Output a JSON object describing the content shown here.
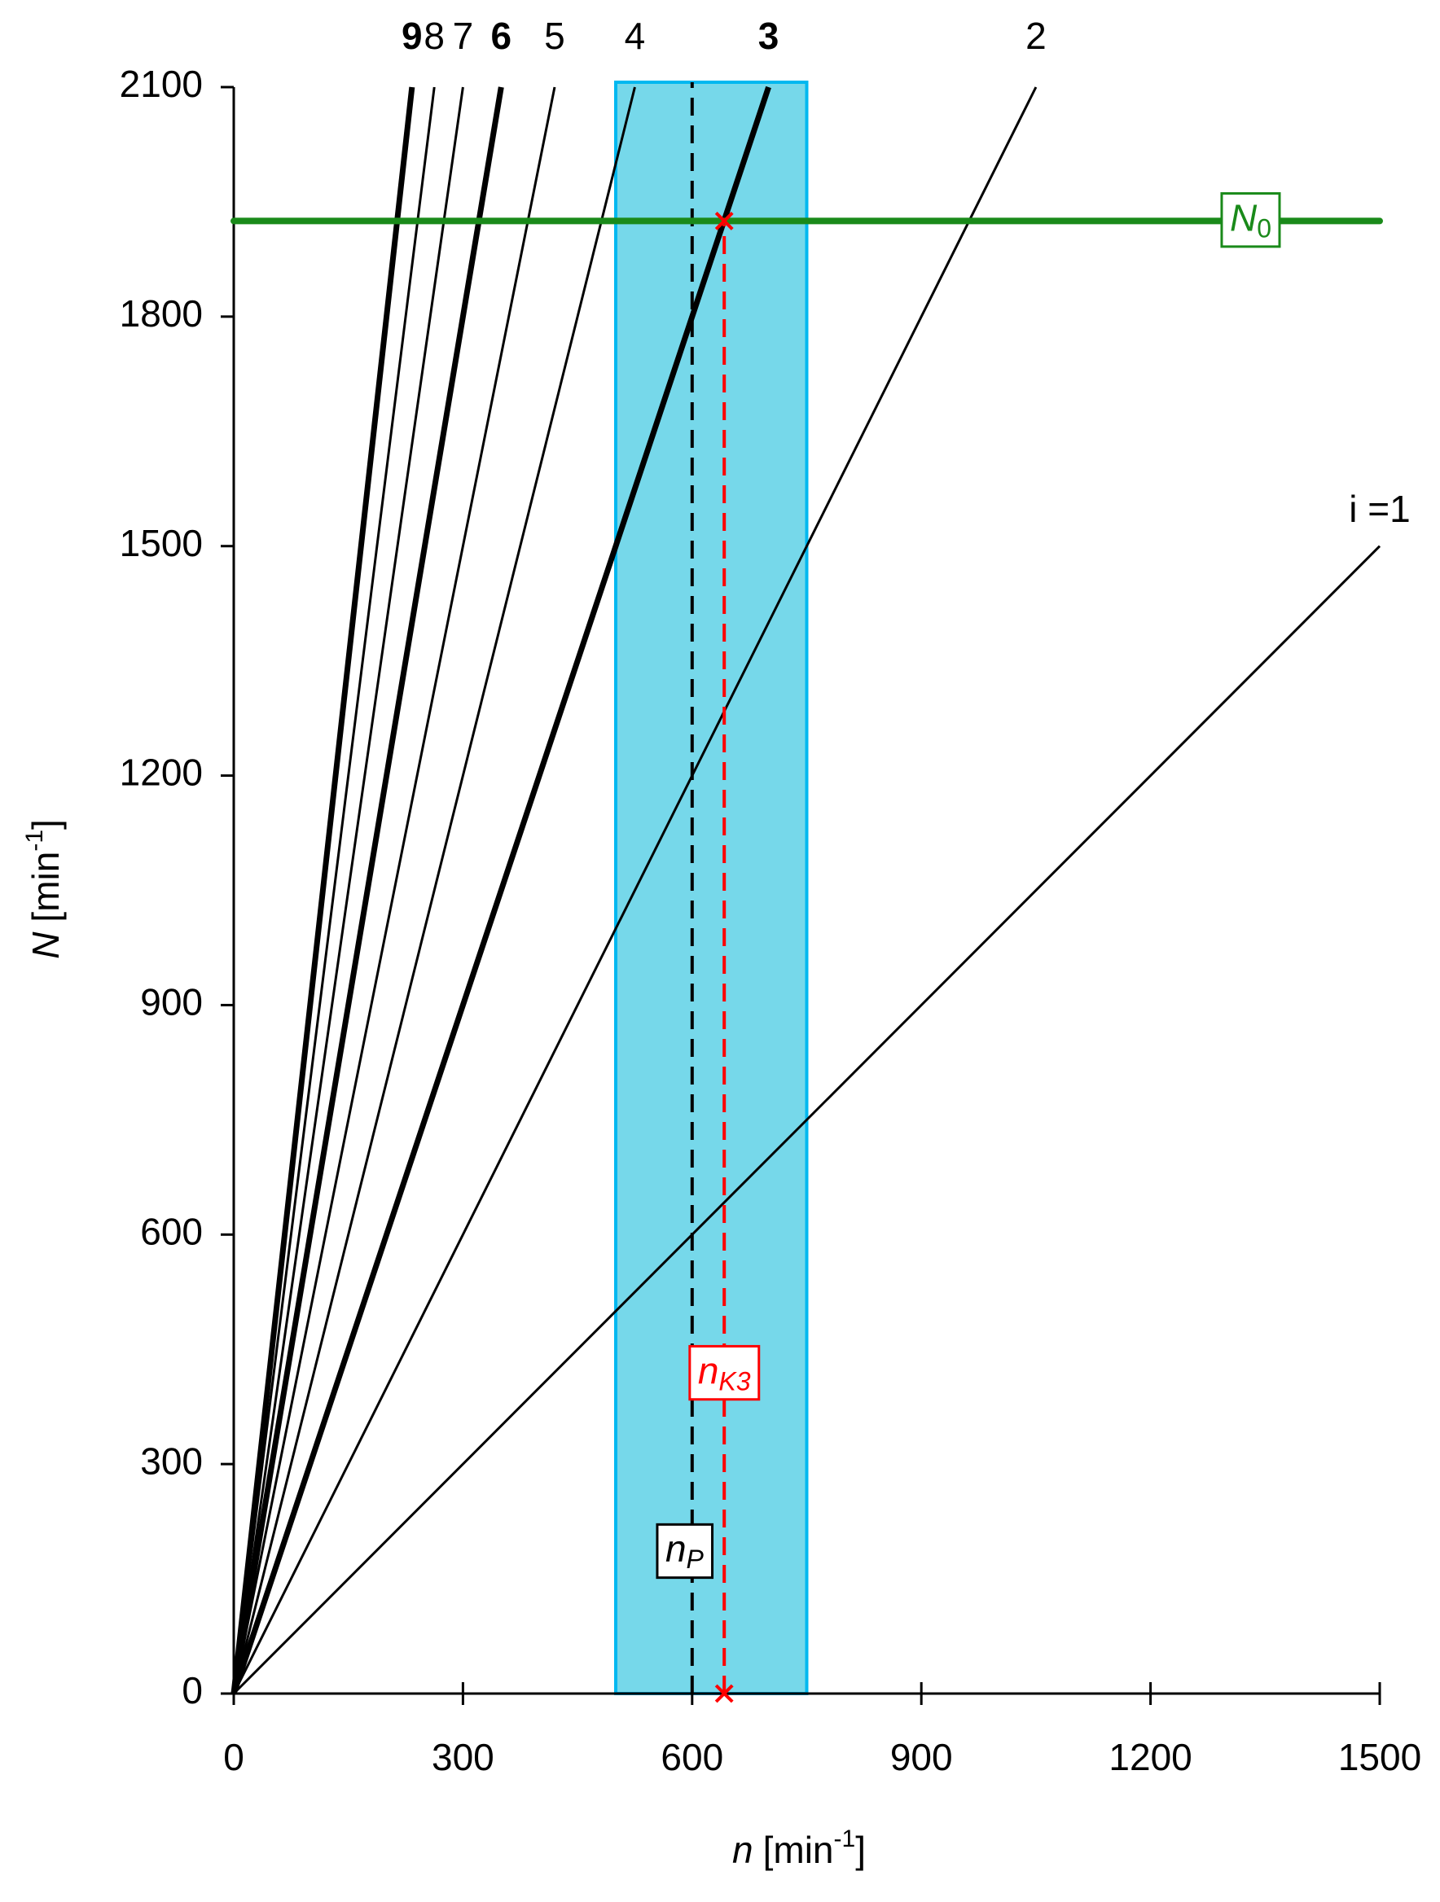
{
  "chart_data": {
    "type": "line",
    "x_label": {
      "symbol": "n",
      "unit": "[min",
      "exponent": "-1",
      "close": "]"
    },
    "y_label": {
      "symbol": "N",
      "unit": "[min",
      "exponent": "-1",
      "close": "]"
    },
    "xlim": [
      0,
      1500
    ],
    "xticks": [
      0,
      300,
      600,
      900,
      1200,
      1500
    ],
    "ylim": [
      0,
      2100
    ],
    "yticks": [
      0,
      300,
      600,
      900,
      1200,
      1500,
      1800,
      2100
    ],
    "series": [
      {
        "name": "i =1",
        "color": "#000000",
        "bold": false,
        "x": [
          0,
          1500
        ],
        "values": [
          0,
          1500
        ]
      },
      {
        "name": "2",
        "color": "#000000",
        "bold": false,
        "x": [
          0,
          1050
        ],
        "values": [
          0,
          2100
        ]
      },
      {
        "name": "3",
        "color": "#000000",
        "bold": true,
        "x": [
          0,
          700
        ],
        "values": [
          0,
          2100
        ]
      },
      {
        "name": "4",
        "color": "#000000",
        "bold": false,
        "x": [
          0,
          525
        ],
        "values": [
          0,
          2100
        ]
      },
      {
        "name": "5",
        "color": "#000000",
        "bold": false,
        "x": [
          0,
          420
        ],
        "values": [
          0,
          2100
        ]
      },
      {
        "name": "6",
        "color": "#000000",
        "bold": true,
        "x": [
          0,
          350
        ],
        "values": [
          0,
          2100
        ]
      },
      {
        "name": "7",
        "color": "#000000",
        "bold": false,
        "x": [
          0,
          300
        ],
        "values": [
          0,
          2100
        ]
      },
      {
        "name": "8",
        "color": "#000000",
        "bold": false,
        "x": [
          0,
          262.5
        ],
        "values": [
          0,
          2100
        ]
      },
      {
        "name": "9",
        "color": "#000000",
        "bold": true,
        "x": [
          0,
          233.3
        ],
        "values": [
          0,
          2100
        ]
      }
    ],
    "region": {
      "xlim": [
        500,
        750
      ],
      "color": "#76d8ea",
      "edge_color": "#00b8f0"
    },
    "hline": {
      "value": 1925,
      "color": "#1a8a1a",
      "label": {
        "text": "N",
        "sub": "0"
      }
    },
    "vlines": [
      {
        "value": 600,
        "color": "#000000",
        "label": {
          "text": "n",
          "sub": "P"
        }
      },
      {
        "value": 642,
        "color": "#ff0000",
        "ylim": [
          0,
          1925
        ],
        "label": {
          "text": "n",
          "sub": "K3"
        }
      }
    ],
    "markers": {
      "color": "#ff0000",
      "x": [
        642,
        642
      ],
      "values": [
        1925,
        0
      ]
    }
  }
}
